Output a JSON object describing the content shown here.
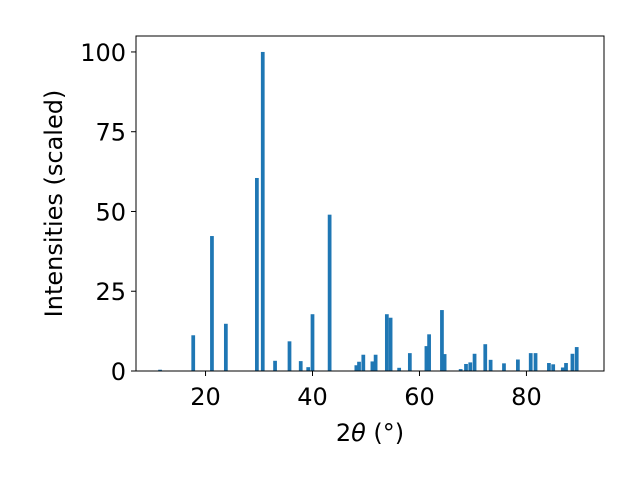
{
  "chart_data": {
    "type": "bar",
    "xlabel": "2θ (°)",
    "ylabel": "Intensities (scaled)",
    "xlim": [
      7,
      94.5
    ],
    "ylim": [
      0,
      105
    ],
    "xticks": [
      20,
      40,
      60,
      80
    ],
    "yticks": [
      0,
      25,
      50,
      75,
      100
    ],
    "bar_width_units": 0.7,
    "color": "#1f77b4",
    "x": [
      11.5,
      17.7,
      21.2,
      23.8,
      29.6,
      30.7,
      33.0,
      35.7,
      37.8,
      39.2,
      40.0,
      43.2,
      48.2,
      48.7,
      49.5,
      51.2,
      51.8,
      53.9,
      54.6,
      56.2,
      58.2,
      61.3,
      61.8,
      64.2,
      64.7,
      67.7,
      68.7,
      69.5,
      70.3,
      72.3,
      73.3,
      75.8,
      78.4,
      80.8,
      81.7,
      84.2,
      85.0,
      86.8,
      87.4,
      88.6,
      89.4
    ],
    "values": [
      0.4,
      11.2,
      42.3,
      14.8,
      60.5,
      100.0,
      3.2,
      9.3,
      3.1,
      1.2,
      17.8,
      49.0,
      1.8,
      2.9,
      5.1,
      3.0,
      5.1,
      17.8,
      16.7,
      1.0,
      5.6,
      7.8,
      11.5,
      19.1,
      5.3,
      0.6,
      2.2,
      2.7,
      5.4,
      8.4,
      3.5,
      2.4,
      3.6,
      5.6,
      5.6,
      2.5,
      2.1,
      1.1,
      2.5,
      5.4,
      7.5
    ]
  }
}
